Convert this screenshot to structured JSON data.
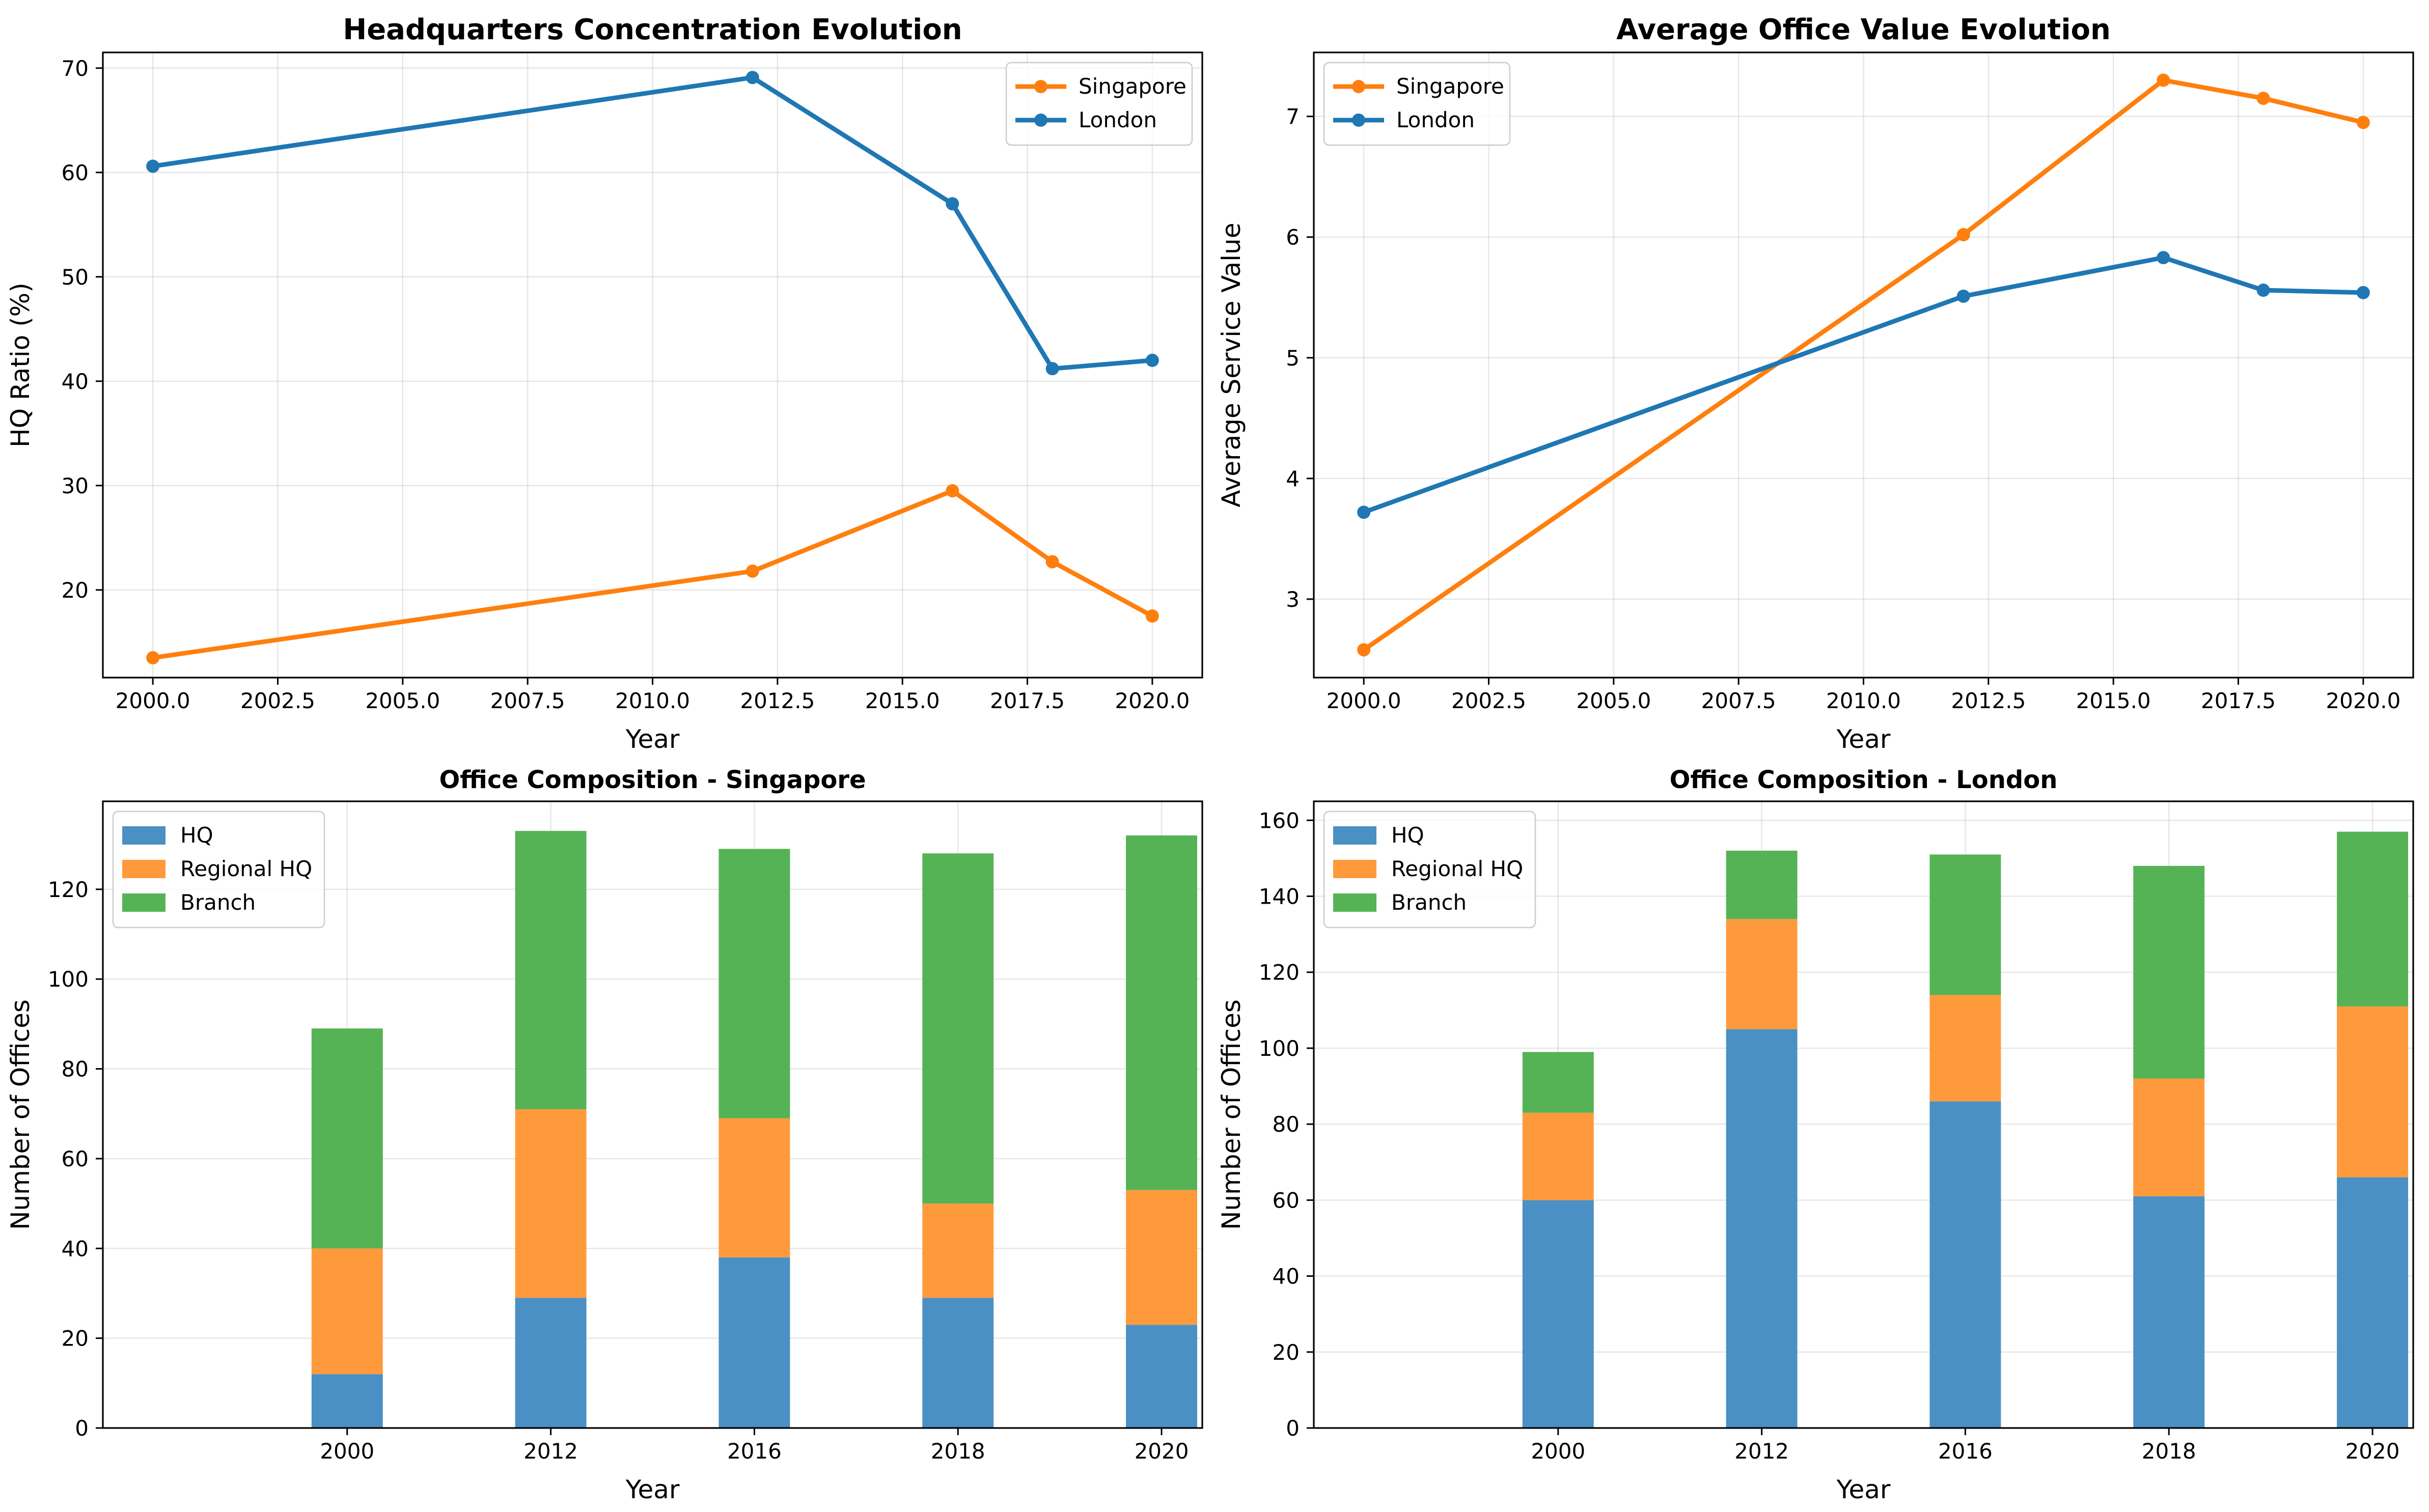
{
  "chart_data": [
    {
      "type": "line",
      "title": "Headquarters Concentration Evolution",
      "xlabel": "Year",
      "ylabel": "HQ Ratio (%)",
      "xlim": [
        1999.0,
        2021.0
      ],
      "ylim": [
        11.6,
        71.5
      ],
      "xticks": [
        2000.0,
        2002.5,
        2005.0,
        2007.5,
        2010.0,
        2012.5,
        2015.0,
        2017.5,
        2020.0
      ],
      "xtick_labels": [
        "2000.0",
        "2002.5",
        "2005.0",
        "2007.5",
        "2010.0",
        "2012.5",
        "2015.0",
        "2017.5",
        "2020.0"
      ],
      "yticks": [
        20,
        30,
        40,
        50,
        60,
        70
      ],
      "ytick_labels": [
        "20",
        "30",
        "40",
        "50",
        "60",
        "70"
      ],
      "grid": true,
      "legend_position": "upper right",
      "x": [
        2000,
        2012,
        2016,
        2018,
        2020
      ],
      "series": [
        {
          "name": "Singapore",
          "color": "#ff7f0e",
          "values": [
            13.5,
            21.8,
            29.5,
            22.7,
            17.5
          ]
        },
        {
          "name": "London",
          "color": "#1f77b4",
          "values": [
            60.6,
            69.1,
            57.0,
            41.2,
            42.0
          ]
        }
      ]
    },
    {
      "type": "line",
      "title": "Average Office Value Evolution",
      "xlabel": "Year",
      "ylabel": "Average Service Value",
      "xlim": [
        1999.0,
        2021.0
      ],
      "ylim": [
        2.35,
        7.53
      ],
      "xticks": [
        2000.0,
        2002.5,
        2005.0,
        2007.5,
        2010.0,
        2012.5,
        2015.0,
        2017.5,
        2020.0
      ],
      "xtick_labels": [
        "2000.0",
        "2002.5",
        "2005.0",
        "2007.5",
        "2010.0",
        "2012.5",
        "2015.0",
        "2017.5",
        "2020.0"
      ],
      "yticks": [
        3,
        4,
        5,
        6,
        7
      ],
      "ytick_labels": [
        "3",
        "4",
        "5",
        "6",
        "7"
      ],
      "grid": true,
      "legend_position": "upper left",
      "x": [
        2000,
        2012,
        2016,
        2018,
        2020
      ],
      "series": [
        {
          "name": "Singapore",
          "color": "#ff7f0e",
          "values": [
            2.58,
            6.02,
            7.3,
            7.15,
            6.95
          ]
        },
        {
          "name": "London",
          "color": "#1f77b4",
          "values": [
            3.72,
            5.51,
            5.83,
            5.56,
            5.54
          ]
        }
      ]
    },
    {
      "type": "bar",
      "stacked": true,
      "title": "Office Composition - Singapore",
      "xlabel": "Year",
      "ylabel": "Number of Offices",
      "categories": [
        "2000",
        "2012",
        "2016",
        "2018",
        "2020"
      ],
      "ylim": [
        0,
        139.6
      ],
      "yticks": [
        0,
        20,
        40,
        60,
        80,
        100,
        120
      ],
      "ytick_labels": [
        "0",
        "20",
        "40",
        "60",
        "80",
        "100",
        "120"
      ],
      "grid": true,
      "legend_position": "upper left",
      "series": [
        {
          "name": "HQ",
          "color": "#4a90c4",
          "values": [
            12,
            29,
            38,
            29,
            23
          ]
        },
        {
          "name": "Regional HQ",
          "color": "#ff9a3c",
          "values": [
            28,
            42,
            31,
            21,
            30
          ]
        },
        {
          "name": "Branch",
          "color": "#55b355",
          "values": [
            49,
            62,
            60,
            78,
            79
          ]
        }
      ]
    },
    {
      "type": "bar",
      "stacked": true,
      "title": "Office Composition - London",
      "xlabel": "Year",
      "ylabel": "Number of Offices",
      "categories": [
        "2000",
        "2012",
        "2016",
        "2018",
        "2020"
      ],
      "ylim": [
        0,
        165
      ],
      "yticks": [
        0,
        20,
        40,
        60,
        80,
        100,
        120,
        140,
        160
      ],
      "ytick_labels": [
        "0",
        "20",
        "40",
        "60",
        "80",
        "100",
        "120",
        "140",
        "160"
      ],
      "grid": true,
      "legend_position": "upper left",
      "series": [
        {
          "name": "HQ",
          "color": "#4a90c4",
          "values": [
            60,
            105,
            86,
            61,
            66
          ]
        },
        {
          "name": "Regional HQ",
          "color": "#ff9a3c",
          "values": [
            23,
            29,
            28,
            31,
            45
          ]
        },
        {
          "name": "Branch",
          "color": "#55b355",
          "values": [
            16,
            18,
            37,
            56,
            46
          ]
        }
      ]
    }
  ]
}
